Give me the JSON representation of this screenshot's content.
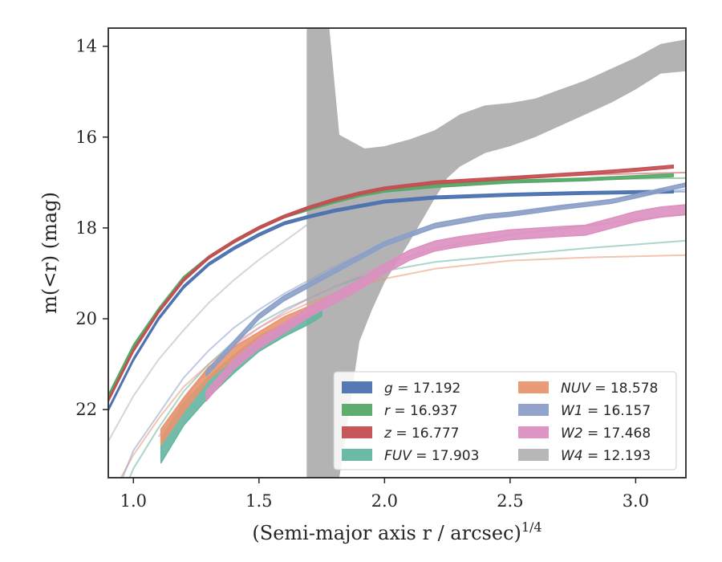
{
  "chart_data": {
    "type": "line",
    "xlabel": "(Semi-major axis r / arcsec)",
    "xlabel_exponent": "1/4",
    "ylabel": "m(<r) (mag)",
    "xlim": [
      0.9,
      3.2
    ],
    "ylim": [
      23.5,
      13.6
    ],
    "y_inverted": true,
    "grid": false,
    "legend_position": "lower-right",
    "xticks": [
      {
        "value": 1.0,
        "label": "1.0"
      },
      {
        "value": 1.5,
        "label": "1.5"
      },
      {
        "value": 2.0,
        "label": "2.0"
      },
      {
        "value": 2.5,
        "label": "2.5"
      },
      {
        "value": 3.0,
        "label": "3.0"
      }
    ],
    "yticks": [
      {
        "value": 14,
        "label": "14"
      },
      {
        "value": 16,
        "label": "16"
      },
      {
        "value": 18,
        "label": "18"
      },
      {
        "value": 20,
        "label": "20"
      },
      {
        "value": 22,
        "label": "22"
      }
    ],
    "series": [
      {
        "name": "g = 17.192",
        "sym": "g",
        "val": "17.192",
        "color": "#4c72b0",
        "model": [
          [
            0.9,
            22.0
          ],
          [
            1.0,
            20.9
          ],
          [
            1.1,
            20.0
          ],
          [
            1.2,
            19.3
          ],
          [
            1.3,
            18.8
          ],
          [
            1.4,
            18.45
          ],
          [
            1.5,
            18.15
          ],
          [
            1.6,
            17.9
          ],
          [
            1.7,
            17.75
          ],
          [
            1.8,
            17.62
          ],
          [
            1.9,
            17.52
          ],
          [
            2.0,
            17.42
          ],
          [
            2.2,
            17.33
          ],
          [
            2.5,
            17.27
          ],
          [
            2.8,
            17.23
          ],
          [
            3.2,
            17.2
          ]
        ],
        "obs": [
          [
            0.9,
            22.0
          ],
          [
            1.0,
            20.9
          ],
          [
            1.1,
            20.0
          ],
          [
            1.2,
            19.3
          ],
          [
            1.3,
            18.8
          ],
          [
            1.4,
            18.45
          ],
          [
            1.5,
            18.15
          ],
          [
            1.6,
            17.9
          ],
          [
            1.7,
            17.75
          ],
          [
            1.8,
            17.62
          ],
          [
            1.9,
            17.52
          ],
          [
            2.0,
            17.42
          ],
          [
            2.2,
            17.33
          ],
          [
            2.5,
            17.27
          ],
          [
            2.8,
            17.23
          ],
          [
            3.15,
            17.2
          ]
        ],
        "band_width": [
          0.06,
          0.06
        ]
      },
      {
        "name": "r = 16.937",
        "sym": "r",
        "val": "16.937",
        "color": "#55a868",
        "model": [
          [
            0.9,
            21.7
          ],
          [
            1.0,
            20.6
          ],
          [
            1.1,
            19.8
          ],
          [
            1.2,
            19.1
          ],
          [
            1.3,
            18.65
          ],
          [
            1.4,
            18.3
          ],
          [
            1.5,
            18.0
          ],
          [
            1.6,
            17.75
          ],
          [
            1.7,
            17.58
          ],
          [
            1.8,
            17.42
          ],
          [
            1.9,
            17.28
          ],
          [
            2.0,
            17.18
          ],
          [
            2.2,
            17.08
          ],
          [
            2.5,
            16.98
          ],
          [
            2.8,
            16.93
          ],
          [
            3.2,
            16.9
          ]
        ],
        "obs": [
          [
            0.9,
            21.7
          ],
          [
            1.0,
            20.6
          ],
          [
            1.1,
            19.8
          ],
          [
            1.2,
            19.1
          ],
          [
            1.3,
            18.65
          ],
          [
            1.4,
            18.3
          ],
          [
            1.5,
            18.0
          ],
          [
            1.6,
            17.75
          ],
          [
            1.7,
            17.58
          ],
          [
            1.8,
            17.42
          ],
          [
            1.9,
            17.28
          ],
          [
            2.0,
            17.18
          ],
          [
            2.2,
            17.08
          ],
          [
            2.5,
            16.98
          ],
          [
            2.8,
            16.93
          ],
          [
            3.15,
            16.84
          ]
        ],
        "band_width": [
          0.06,
          0.06
        ]
      },
      {
        "name": "z = 16.777",
        "sym": "z",
        "val": "16.777",
        "color": "#c44e52",
        "model": [
          [
            0.9,
            21.8
          ],
          [
            1.0,
            20.7
          ],
          [
            1.1,
            19.85
          ],
          [
            1.2,
            19.15
          ],
          [
            1.3,
            18.65
          ],
          [
            1.4,
            18.3
          ],
          [
            1.5,
            18.0
          ],
          [
            1.6,
            17.75
          ],
          [
            1.7,
            17.55
          ],
          [
            1.8,
            17.38
          ],
          [
            1.9,
            17.24
          ],
          [
            2.0,
            17.13
          ],
          [
            2.2,
            17.0
          ],
          [
            2.5,
            16.9
          ],
          [
            2.8,
            16.83
          ],
          [
            3.2,
            16.78
          ]
        ],
        "obs": [
          [
            0.9,
            21.8
          ],
          [
            1.0,
            20.7
          ],
          [
            1.1,
            19.85
          ],
          [
            1.2,
            19.15
          ],
          [
            1.3,
            18.65
          ],
          [
            1.4,
            18.3
          ],
          [
            1.5,
            18.0
          ],
          [
            1.6,
            17.75
          ],
          [
            1.7,
            17.55
          ],
          [
            1.8,
            17.38
          ],
          [
            1.9,
            17.24
          ],
          [
            2.0,
            17.13
          ],
          [
            2.2,
            17.0
          ],
          [
            2.5,
            16.9
          ],
          [
            2.8,
            16.8
          ],
          [
            3.0,
            16.72
          ],
          [
            3.15,
            16.65
          ]
        ],
        "band_width": [
          0.06,
          0.06
        ]
      },
      {
        "name": "FUV = 17.903",
        "sym": "FUV",
        "val": "17.903",
        "color": "#64b5a0",
        "model": [
          [
            0.9,
            24.6
          ],
          [
            1.0,
            23.3
          ],
          [
            1.1,
            22.4
          ],
          [
            1.2,
            21.6
          ],
          [
            1.3,
            21.0
          ],
          [
            1.4,
            20.5
          ],
          [
            1.5,
            20.1
          ],
          [
            1.6,
            19.8
          ],
          [
            1.7,
            19.55
          ],
          [
            1.8,
            19.3
          ],
          [
            1.9,
            19.1
          ],
          [
            2.0,
            18.95
          ],
          [
            2.2,
            18.75
          ],
          [
            2.5,
            18.6
          ],
          [
            2.8,
            18.45
          ],
          [
            3.2,
            18.28
          ]
        ],
        "obs": [
          [
            1.11,
            22.9
          ],
          [
            1.2,
            22.1
          ],
          [
            1.3,
            21.5
          ],
          [
            1.4,
            21.0
          ],
          [
            1.5,
            20.55
          ],
          [
            1.6,
            20.25
          ],
          [
            1.7,
            20.0
          ],
          [
            1.75,
            19.85
          ]
        ],
        "band_width": [
          0.55,
          0.18
        ]
      },
      {
        "name": "NUV = 18.578",
        "sym": "NUV",
        "val": "18.578",
        "color": "#e8956f",
        "model": [
          [
            0.9,
            24.0
          ],
          [
            1.0,
            23.0
          ],
          [
            1.1,
            22.2
          ],
          [
            1.2,
            21.5
          ],
          [
            1.3,
            21.0
          ],
          [
            1.4,
            20.55
          ],
          [
            1.5,
            20.2
          ],
          [
            1.6,
            19.9
          ],
          [
            1.7,
            19.65
          ],
          [
            1.8,
            19.45
          ],
          [
            1.9,
            19.28
          ],
          [
            2.0,
            19.12
          ],
          [
            2.2,
            18.9
          ],
          [
            2.5,
            18.72
          ],
          [
            2.8,
            18.65
          ],
          [
            3.2,
            18.6
          ]
        ],
        "obs": [
          [
            1.11,
            22.6
          ],
          [
            1.2,
            21.9
          ],
          [
            1.3,
            21.2
          ],
          [
            1.4,
            20.75
          ],
          [
            1.5,
            20.4
          ],
          [
            1.6,
            20.05
          ],
          [
            1.7,
            19.8
          ],
          [
            1.75,
            19.65
          ]
        ],
        "band_width": [
          0.35,
          0.12
        ]
      },
      {
        "name": "W1 = 16.157",
        "sym": "W1",
        "val": "16.157",
        "color": "#8c9fc8",
        "model": [
          [
            0.9,
            24.3
          ],
          [
            1.0,
            22.9
          ],
          [
            1.1,
            22.1
          ],
          [
            1.2,
            21.3
          ],
          [
            1.3,
            20.7
          ],
          [
            1.4,
            20.2
          ],
          [
            1.5,
            19.8
          ],
          [
            1.6,
            19.45
          ],
          [
            1.7,
            19.15
          ],
          [
            1.8,
            18.85
          ],
          [
            1.9,
            18.6
          ],
          [
            2.0,
            18.35
          ],
          [
            2.2,
            18.0
          ],
          [
            2.5,
            17.7
          ],
          [
            2.8,
            17.45
          ],
          [
            3.2,
            17.15
          ]
        ],
        "obs": [
          [
            1.29,
            21.2
          ],
          [
            1.4,
            20.55
          ],
          [
            1.5,
            19.95
          ],
          [
            1.6,
            19.55
          ],
          [
            1.7,
            19.25
          ],
          [
            1.8,
            18.95
          ],
          [
            1.9,
            18.65
          ],
          [
            2.0,
            18.35
          ],
          [
            2.2,
            17.95
          ],
          [
            2.4,
            17.75
          ],
          [
            2.5,
            17.7
          ],
          [
            2.7,
            17.55
          ],
          [
            2.9,
            17.42
          ],
          [
            3.0,
            17.3
          ],
          [
            3.2,
            17.05
          ]
        ],
        "band_width": [
          0.12,
          0.08
        ]
      },
      {
        "name": "W2 = 17.468",
        "sym": "W2",
        "val": "17.468",
        "color": "#dd8fc0",
        "model": [
          [
            1.1,
            22.6
          ],
          [
            1.2,
            21.8
          ],
          [
            1.3,
            21.1
          ],
          [
            1.4,
            20.6
          ],
          [
            1.5,
            20.2
          ],
          [
            1.6,
            19.85
          ],
          [
            1.7,
            19.55
          ],
          [
            1.8,
            19.3
          ],
          [
            1.9,
            19.05
          ],
          [
            2.0,
            18.8
          ],
          [
            2.2,
            18.45
          ],
          [
            2.5,
            18.15
          ],
          [
            2.8,
            17.95
          ],
          [
            3.2,
            17.7
          ]
        ],
        "obs": [
          [
            1.29,
            21.7
          ],
          [
            1.4,
            21.0
          ],
          [
            1.5,
            20.55
          ],
          [
            1.6,
            20.2
          ],
          [
            1.7,
            19.85
          ],
          [
            1.8,
            19.55
          ],
          [
            1.9,
            19.25
          ],
          [
            2.0,
            18.9
          ],
          [
            2.1,
            18.6
          ],
          [
            2.2,
            18.4
          ],
          [
            2.3,
            18.3
          ],
          [
            2.5,
            18.15
          ],
          [
            2.7,
            18.08
          ],
          [
            2.8,
            18.05
          ],
          [
            2.9,
            17.9
          ],
          [
            3.0,
            17.75
          ],
          [
            3.1,
            17.65
          ],
          [
            3.2,
            17.6
          ]
        ],
        "band_width": [
          0.22,
          0.22
        ]
      },
      {
        "name": "W4 = 12.193",
        "sym": "W4",
        "val": "12.193",
        "color": "#b3b3b3",
        "model": [
          [
            0.9,
            22.7
          ],
          [
            1.0,
            21.7
          ],
          [
            1.1,
            20.9
          ],
          [
            1.2,
            20.25
          ],
          [
            1.3,
            19.65
          ],
          [
            1.4,
            19.15
          ],
          [
            1.5,
            18.7
          ],
          [
            1.6,
            18.3
          ],
          [
            1.7,
            17.9
          ],
          [
            1.8,
            17.55
          ],
          [
            1.9,
            17.2
          ],
          [
            2.0,
            16.9
          ],
          [
            2.2,
            16.45
          ],
          [
            2.5,
            15.9
          ],
          [
            2.8,
            15.4
          ],
          [
            3.2,
            14.3
          ]
        ],
        "band_upper": [
          [
            1.69,
            13.6
          ],
          [
            1.78,
            13.6
          ],
          [
            1.82,
            15.95
          ],
          [
            1.92,
            16.25
          ],
          [
            2.0,
            16.2
          ],
          [
            2.1,
            16.05
          ],
          [
            2.2,
            15.85
          ],
          [
            2.3,
            15.5
          ],
          [
            2.4,
            15.3
          ],
          [
            2.5,
            15.25
          ],
          [
            2.6,
            15.15
          ],
          [
            2.7,
            14.95
          ],
          [
            2.8,
            14.75
          ],
          [
            2.9,
            14.5
          ],
          [
            3.0,
            14.25
          ],
          [
            3.1,
            13.95
          ],
          [
            3.2,
            13.85
          ]
        ],
        "band_lower": [
          [
            1.69,
            23.5
          ],
          [
            1.82,
            23.5
          ],
          [
            1.9,
            20.5
          ],
          [
            1.95,
            19.8
          ],
          [
            2.0,
            19.2
          ],
          [
            2.1,
            18.3
          ],
          [
            2.2,
            17.35
          ],
          [
            2.25,
            16.9
          ],
          [
            2.3,
            16.65
          ],
          [
            2.4,
            16.35
          ],
          [
            2.5,
            16.2
          ],
          [
            2.6,
            16.0
          ],
          [
            2.7,
            15.75
          ],
          [
            2.8,
            15.5
          ],
          [
            2.9,
            15.25
          ],
          [
            3.0,
            14.95
          ],
          [
            3.1,
            14.6
          ],
          [
            3.2,
            14.55
          ]
        ]
      }
    ]
  }
}
